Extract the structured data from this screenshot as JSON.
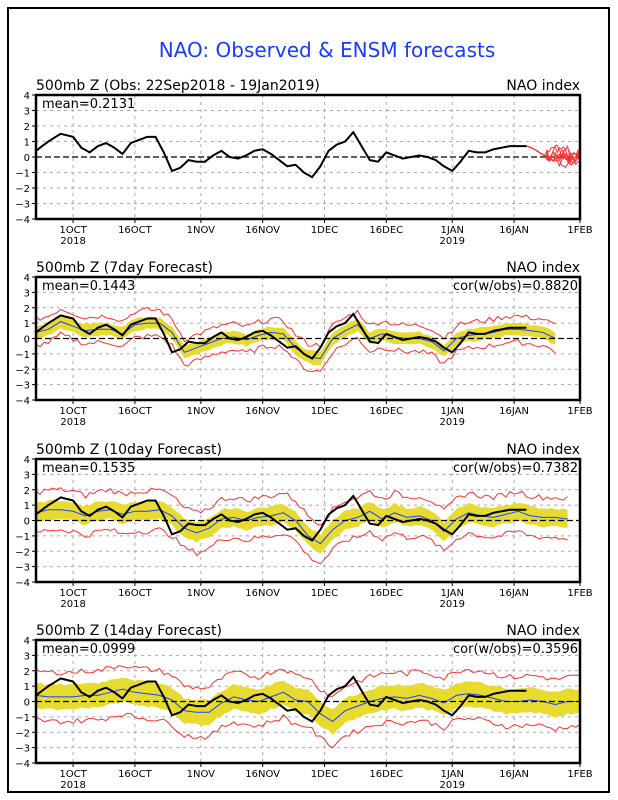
{
  "title": "NAO: Observed & ENSM forecasts",
  "colors": {
    "title": "#1a3bff",
    "observed": "#000000",
    "ensmean": "#1f3fff",
    "spread": "#e6db2e",
    "range": "#ff3030",
    "zero": "#000000"
  },
  "chart_data": [
    {
      "type": "line",
      "panel_title": "500mb Z (Obs: 22Sep2018 - 19Jan2019)",
      "right_label": "NAO index",
      "mean_label": "mean=0.2131",
      "cor_label": "",
      "ylim": [
        -4,
        4
      ],
      "yticks": [
        "4",
        "3",
        "2",
        "1",
        "0",
        "-1",
        "-2",
        "-3",
        "-4"
      ],
      "xlim_days": [
        0,
        132
      ],
      "xticks": [
        {
          "day": 9,
          "label": "1OCT",
          "sub": "2018"
        },
        {
          "day": 24,
          "label": "16OCT",
          "sub": ""
        },
        {
          "day": 40,
          "label": "1NOV",
          "sub": ""
        },
        {
          "day": 55,
          "label": "16NOV",
          "sub": ""
        },
        {
          "day": 70,
          "label": "1DEC",
          "sub": ""
        },
        {
          "day": 85,
          "label": "16DEC",
          "sub": ""
        },
        {
          "day": 101,
          "label": "1JAN",
          "sub": "2019"
        },
        {
          "day": 116,
          "label": "16JAN",
          "sub": ""
        },
        {
          "day": 132,
          "label": "1FEB",
          "sub": ""
        }
      ],
      "grid": true,
      "observed": {
        "x": [
          0,
          3,
          6,
          9,
          11,
          13,
          15,
          17,
          19,
          21,
          23,
          25,
          27,
          29,
          31,
          33,
          35,
          37,
          39,
          41,
          43,
          45,
          47,
          49,
          51,
          53,
          55,
          57,
          59,
          61,
          63,
          65,
          67,
          69,
          71,
          73,
          75,
          77,
          79,
          81,
          83,
          85,
          87,
          89,
          91,
          93,
          95,
          97,
          99,
          101,
          103,
          105,
          107,
          109,
          111,
          113,
          115,
          117,
          119
        ],
        "y": [
          0.4,
          1.0,
          1.5,
          1.3,
          0.6,
          0.3,
          0.7,
          0.9,
          0.6,
          0.2,
          0.9,
          1.1,
          1.3,
          1.3,
          0.3,
          -0.9,
          -0.7,
          -0.2,
          -0.3,
          -0.3,
          0.1,
          0.4,
          0.0,
          -0.1,
          0.1,
          0.4,
          0.5,
          0.2,
          -0.2,
          -0.6,
          -0.5,
          -1.0,
          -1.3,
          -0.6,
          0.4,
          0.8,
          1.0,
          1.6,
          0.7,
          -0.2,
          -0.3,
          0.3,
          0.1,
          -0.1,
          0.0,
          0.1,
          0.0,
          -0.2,
          -0.6,
          -0.9,
          -0.3,
          0.4,
          0.3,
          0.3,
          0.5,
          0.6,
          0.7,
          0.7,
          0.7
        ]
      },
      "ensemble": {
        "start_day": 119,
        "end_day": 132,
        "members": 8,
        "spread_min": -1.2,
        "spread_max": 1.5
      }
    },
    {
      "type": "line",
      "panel_title": "500mb Z (7day Forecast)",
      "right_label": "NAO index",
      "mean_label": "mean=0.1443",
      "cor_label": "cor(w/obs)=0.8820",
      "ylim": [
        -4,
        4
      ],
      "forecast_end_day": 126,
      "ensmean": {
        "x": [
          0,
          3,
          6,
          9,
          12,
          15,
          18,
          21,
          24,
          27,
          30,
          33,
          36,
          39,
          42,
          45,
          48,
          51,
          54,
          57,
          60,
          63,
          66,
          69,
          72,
          75,
          78,
          81,
          84,
          87,
          90,
          93,
          96,
          99,
          102,
          105,
          108,
          111,
          114,
          117,
          120,
          123,
          126
        ],
        "y": [
          0.4,
          0.6,
          1.1,
          0.8,
          0.5,
          0.6,
          0.6,
          0.3,
          0.9,
          1.0,
          1.0,
          0.4,
          -0.9,
          -0.6,
          -0.3,
          0.0,
          0.1,
          -0.1,
          0.2,
          0.4,
          0.3,
          -0.6,
          -1.2,
          -1.3,
          0.0,
          0.5,
          0.9,
          0.0,
          0.3,
          0.1,
          0.0,
          0.0,
          -0.2,
          -0.8,
          0.0,
          0.2,
          0.3,
          0.4,
          0.6,
          0.6,
          0.5,
          0.4,
          0.0
        ]
      },
      "spread_halfwidth": 0.4,
      "range_halfwidth": 0.85
    },
    {
      "type": "line",
      "panel_title": "500mb Z (10day Forecast)",
      "right_label": "NAO index",
      "mean_label": "mean=0.1535",
      "cor_label": "cor(w/obs)=0.7382",
      "ylim": [
        -4,
        4
      ],
      "forecast_end_day": 129,
      "ensmean": {
        "x": [
          0,
          3,
          6,
          9,
          12,
          15,
          18,
          21,
          24,
          27,
          30,
          33,
          36,
          39,
          42,
          45,
          48,
          51,
          54,
          57,
          60,
          63,
          66,
          69,
          72,
          75,
          78,
          81,
          84,
          87,
          90,
          93,
          96,
          99,
          102,
          105,
          108,
          111,
          114,
          117,
          120,
          123,
          126,
          129
        ],
        "y": [
          0.5,
          0.7,
          0.7,
          0.6,
          0.3,
          0.6,
          0.7,
          0.4,
          0.6,
          0.6,
          0.7,
          0.3,
          -0.5,
          -0.8,
          -0.5,
          0.1,
          0.2,
          0.0,
          0.2,
          0.3,
          0.5,
          0.0,
          -1.0,
          -1.5,
          -0.6,
          0.0,
          0.2,
          0.6,
          0.1,
          0.5,
          0.2,
          0.3,
          0.0,
          -0.7,
          0.1,
          0.5,
          0.3,
          0.2,
          0.4,
          0.6,
          0.3,
          0.2,
          0.2,
          0.1
        ]
      },
      "spread_halfwidth": 0.6,
      "range_halfwidth": 1.3
    },
    {
      "type": "line",
      "panel_title": "500mb Z (14day Forecast)",
      "right_label": "NAO index",
      "mean_label": "mean=0.0999",
      "cor_label": "cor(w/obs)=0.3596",
      "ylim": [
        -4,
        4
      ],
      "forecast_end_day": 132,
      "ensmean": {
        "x": [
          0,
          3,
          6,
          9,
          12,
          15,
          18,
          21,
          24,
          27,
          30,
          33,
          36,
          39,
          42,
          45,
          48,
          51,
          54,
          57,
          60,
          63,
          66,
          69,
          72,
          75,
          78,
          81,
          84,
          87,
          90,
          93,
          96,
          99,
          102,
          105,
          108,
          111,
          114,
          117,
          120,
          123,
          126,
          129,
          132
        ],
        "y": [
          0.4,
          0.3,
          0.3,
          0.3,
          0.4,
          0.4,
          0.6,
          0.8,
          0.6,
          0.5,
          0.4,
          0.1,
          -0.6,
          -0.7,
          -0.7,
          -0.1,
          0.3,
          0.1,
          0.0,
          0.3,
          0.6,
          0.1,
          0.0,
          -0.8,
          -1.3,
          -0.6,
          -0.3,
          0.0,
          0.2,
          0.3,
          0.2,
          0.4,
          0.2,
          -0.1,
          0.4,
          0.5,
          0.4,
          0.2,
          0.0,
          0.0,
          0.1,
          0.0,
          -0.2,
          0.0,
          0.0
        ]
      },
      "spread_halfwidth": 0.8,
      "range_halfwidth": 1.6
    }
  ]
}
